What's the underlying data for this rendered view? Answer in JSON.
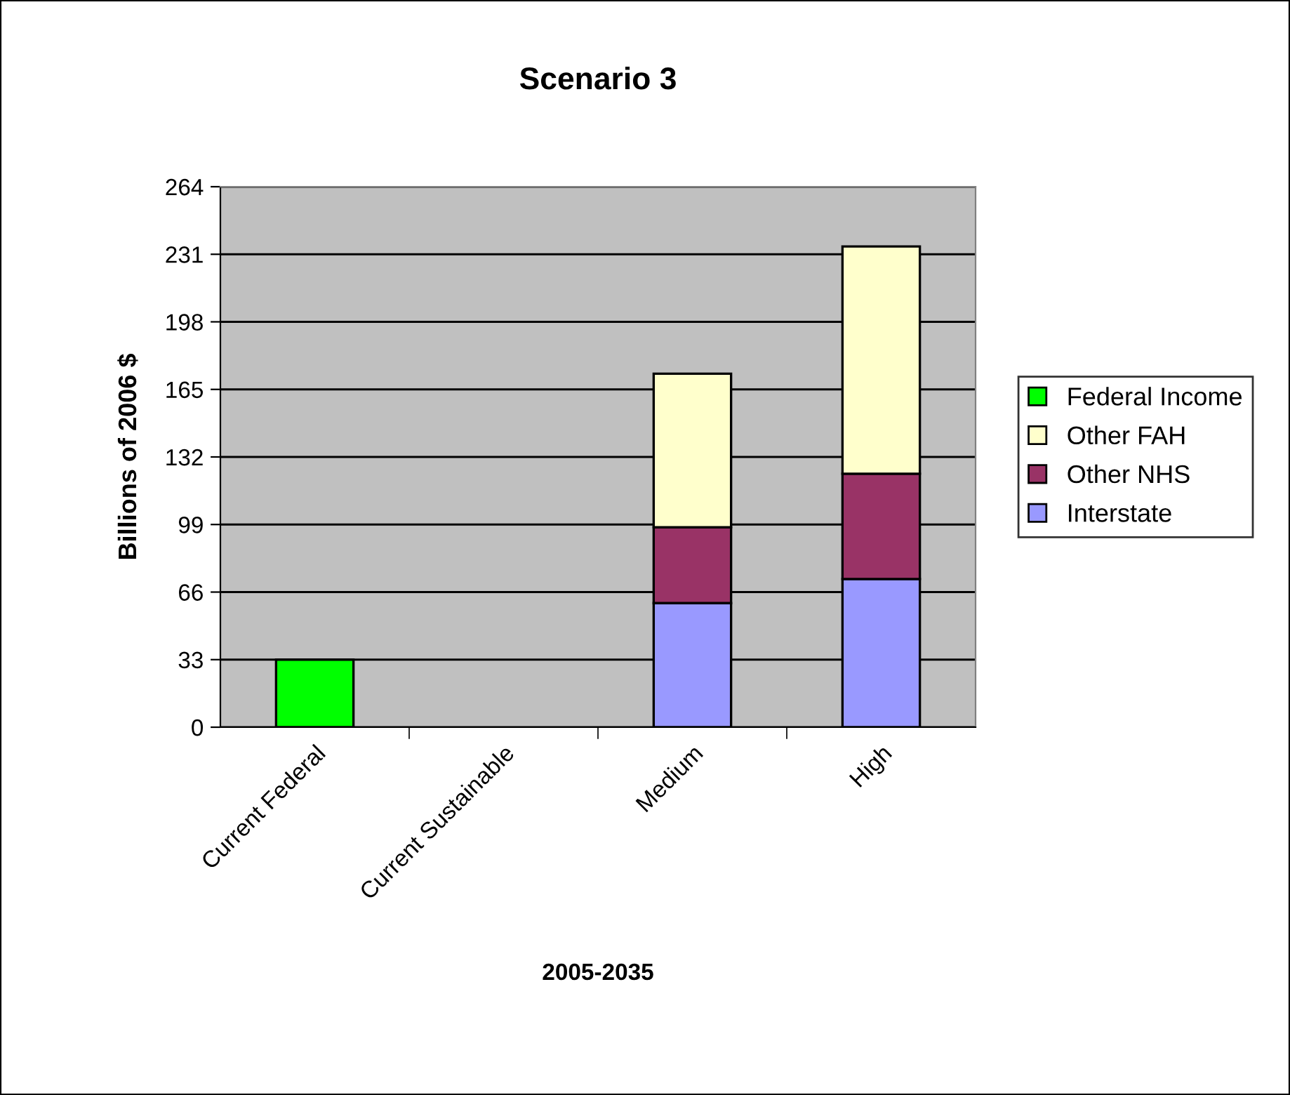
{
  "chart_data": {
    "type": "bar",
    "title": "Scenario 3",
    "xlabel": "2005-2035",
    "ylabel": "Billions of 2006 $",
    "categories": [
      "Current Federal",
      "Current Sustainable",
      "Medium",
      "High"
    ],
    "stacked": true,
    "series": [
      {
        "name": "Interstate",
        "color": "#9999ff",
        "values": [
          null,
          null,
          60.6,
          72.4
        ]
      },
      {
        "name": "Other NHS",
        "color": "#993366",
        "values": [
          null,
          null,
          37.1,
          51.4
        ]
      },
      {
        "name": "Other FAH",
        "color": "#ffffcc",
        "values": [
          null,
          null,
          75.0,
          111.0
        ]
      },
      {
        "name": "Federal Income",
        "color": "#00ff00",
        "values": [
          33,
          null,
          null,
          null
        ]
      }
    ],
    "ylim": [
      0,
      264
    ],
    "yticks": [
      0,
      33,
      66,
      99,
      132,
      165,
      198,
      231,
      264
    ],
    "grid": "y",
    "legend": "right"
  }
}
